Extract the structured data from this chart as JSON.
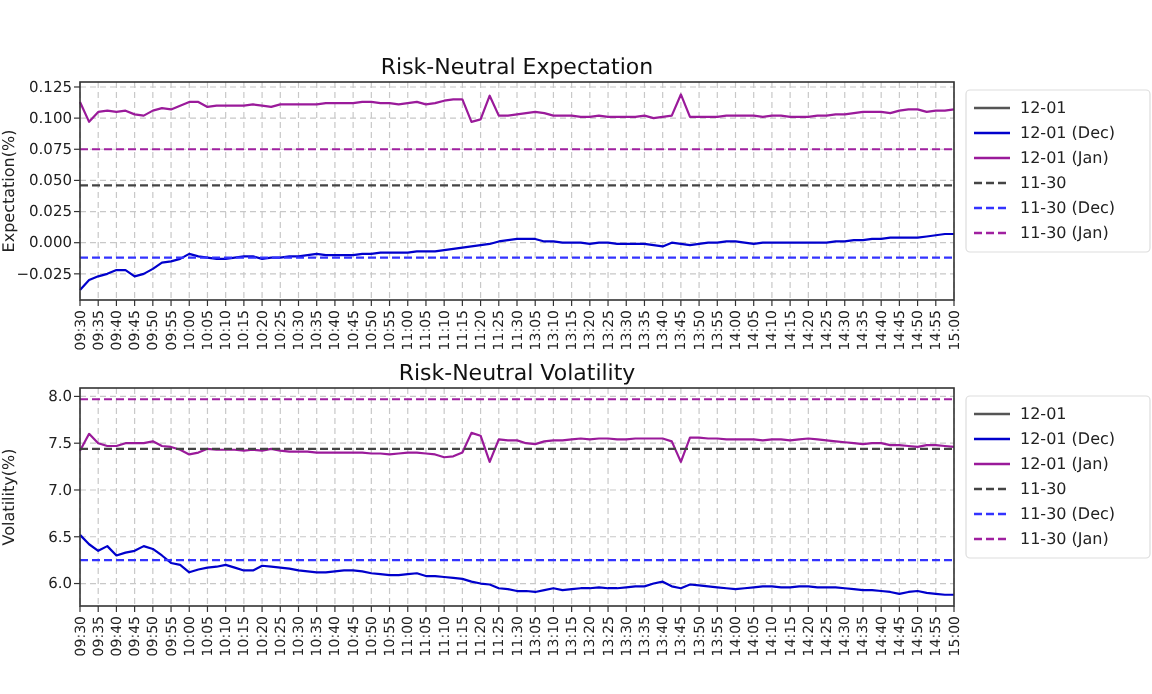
{
  "chart_data": [
    {
      "type": "line",
      "title": "Risk-Neutral Expectation",
      "ylabel": "Expectation(%)",
      "grid": true,
      "legend": "right",
      "line_style": "solid",
      "ylim": [
        -0.046,
        0.129
      ],
      "yticks": [
        {
          "value": -0.025,
          "label": "−0.025"
        },
        {
          "value": 0,
          "label": "0.000"
        },
        {
          "value": 0.025,
          "label": "0.025"
        },
        {
          "value": 0.05,
          "label": "0.050"
        },
        {
          "value": 0.075,
          "label": "0.075"
        },
        {
          "value": 0.1,
          "label": "0.100"
        },
        {
          "value": 0.125,
          "label": "0.125"
        }
      ],
      "categories": [
        "09:30",
        null,
        "09:35",
        null,
        "09:40",
        null,
        "09:45",
        null,
        "09:50",
        null,
        "09:55",
        null,
        "10:00",
        null,
        "10:05",
        null,
        "10:10",
        null,
        "10:15",
        null,
        "10:20",
        null,
        "10:25",
        null,
        "10:30",
        null,
        "10:35",
        null,
        "10:40",
        null,
        "10:45",
        null,
        "10:50",
        null,
        "10:55",
        null,
        "11:00",
        null,
        "11:05",
        null,
        "11:10",
        null,
        "11:15",
        null,
        "11:20",
        null,
        "11:25",
        null,
        "11:30",
        null,
        "13:05",
        null,
        "13:10",
        null,
        "13:15",
        null,
        "13:20",
        null,
        "13:25",
        null,
        "13:30",
        null,
        "13:35",
        null,
        "13:40",
        null,
        "13:45",
        null,
        "13:50",
        null,
        "13:55",
        null,
        "14:00",
        null,
        "14:05",
        null,
        "14:10",
        null,
        "14:15",
        null,
        "14:20",
        null,
        "14:25",
        null,
        "14:30",
        null,
        "14:35",
        null,
        "14:40",
        null,
        "14:45",
        null,
        "14:50",
        null,
        "14:55",
        null,
        "15:00"
      ],
      "series": [
        {
          "name": "12-01",
          "color": "#555555",
          "values": [
            null,
            null,
            null,
            null,
            null,
            null,
            null,
            null,
            null,
            null,
            null,
            null,
            null,
            null,
            null,
            null,
            null,
            null,
            null,
            null,
            null,
            null,
            null,
            null,
            null,
            null,
            null,
            null,
            null,
            null,
            null,
            null,
            null,
            null,
            null,
            null,
            null,
            null,
            null,
            null,
            null,
            null,
            null,
            null,
            null,
            null,
            null,
            null,
            null,
            null,
            null,
            null,
            null,
            null,
            null,
            null,
            null,
            null,
            null,
            null,
            null,
            null,
            null,
            null,
            null,
            null,
            null,
            null,
            null,
            null,
            null,
            null,
            null,
            null,
            null,
            null,
            null,
            null,
            null,
            null,
            null,
            null,
            null,
            null,
            null,
            null,
            null,
            null,
            null,
            null,
            null,
            null,
            null,
            null,
            null,
            null,
            null
          ]
        },
        {
          "name": "12-01 (Dec)",
          "color": "#0000cc",
          "values": [
            -0.038,
            -0.03,
            -0.027,
            -0.025,
            -0.022,
            -0.022,
            -0.027,
            -0.025,
            -0.021,
            -0.016,
            -0.015,
            -0.013,
            -0.009,
            -0.011,
            -0.012,
            -0.013,
            -0.013,
            -0.012,
            -0.011,
            -0.011,
            -0.013,
            -0.012,
            -0.012,
            -0.011,
            -0.011,
            -0.01,
            -0.009,
            -0.01,
            -0.01,
            -0.01,
            -0.01,
            -0.009,
            -0.009,
            -0.008,
            -0.008,
            -0.008,
            -0.008,
            -0.007,
            -0.007,
            -0.007,
            -0.006,
            -0.005,
            -0.004,
            -0.003,
            -0.002,
            -0.001,
            0.001,
            0.002,
            0.003,
            0.003,
            0.003,
            0.001,
            0.001,
            0.0,
            0.0,
            0.0,
            -0.001,
            0.0,
            0.0,
            -0.001,
            -0.001,
            -0.001,
            -0.001,
            -0.002,
            -0.003,
            0.0,
            -0.001,
            -0.002,
            -0.001,
            0.0,
            0.0,
            0.001,
            0.001,
            0.0,
            -0.001,
            0.0,
            0.0,
            0.0,
            0.0,
            0.0,
            0.0,
            0.0,
            0.0,
            0.001,
            0.001,
            0.002,
            0.002,
            0.003,
            0.003,
            0.004,
            0.004,
            0.004,
            0.004,
            0.005,
            0.006,
            0.007,
            0.007
          ]
        },
        {
          "name": "12-01 (Jan)",
          "color": "#9a1a9a",
          "values": [
            0.113,
            0.097,
            0.105,
            0.106,
            0.105,
            0.106,
            0.103,
            0.102,
            0.106,
            0.108,
            0.107,
            0.11,
            0.113,
            0.113,
            0.109,
            0.11,
            0.11,
            0.11,
            0.11,
            0.111,
            0.11,
            0.109,
            0.111,
            0.111,
            0.111,
            0.111,
            0.111,
            0.112,
            0.112,
            0.112,
            0.112,
            0.113,
            0.113,
            0.112,
            0.112,
            0.111,
            0.112,
            0.113,
            0.111,
            0.112,
            0.114,
            0.115,
            0.115,
            0.097,
            0.099,
            0.118,
            0.102,
            0.102,
            0.103,
            0.104,
            0.105,
            0.104,
            0.102,
            0.102,
            0.102,
            0.101,
            0.101,
            0.102,
            0.101,
            0.101,
            0.101,
            0.101,
            0.102,
            0.1,
            0.101,
            0.102,
            0.119,
            0.101,
            0.101,
            0.101,
            0.101,
            0.102,
            0.102,
            0.102,
            0.102,
            0.101,
            0.102,
            0.102,
            0.101,
            0.101,
            0.101,
            0.102,
            0.102,
            0.103,
            0.103,
            0.104,
            0.105,
            0.105,
            0.105,
            0.104,
            0.106,
            0.107,
            0.107,
            0.105,
            0.106,
            0.106,
            0.107
          ]
        },
        {
          "name": "11-30",
          "color": "#444444",
          "line_style": "dashed",
          "values": [
            0.046,
            0.046,
            0.046,
            0.046,
            0.046,
            0.046,
            0.046,
            0.046,
            0.046,
            0.046,
            0.046,
            0.046,
            0.046,
            0.046,
            0.046,
            0.046,
            0.046,
            0.046,
            0.046,
            0.046,
            0.046,
            0.046,
            0.046,
            0.046,
            0.046,
            0.046,
            0.046,
            0.046,
            0.046,
            0.046,
            0.046,
            0.046,
            0.046,
            0.046,
            0.046,
            0.046,
            0.046,
            0.046,
            0.046,
            0.046,
            0.046,
            0.046,
            0.046,
            0.046,
            0.046,
            0.046,
            0.046,
            0.046,
            0.046,
            0.046,
            0.046,
            0.046,
            0.046,
            0.046,
            0.046,
            0.046,
            0.046,
            0.046,
            0.046,
            0.046,
            0.046,
            0.046,
            0.046,
            0.046,
            0.046,
            0.046,
            0.046,
            0.046,
            0.046,
            0.046,
            0.046,
            0.046,
            0.046,
            0.046,
            0.046,
            0.046,
            0.046,
            0.046,
            0.046,
            0.046,
            0.046,
            0.046,
            0.046,
            0.046,
            0.046,
            0.046,
            0.046,
            0.046,
            0.046,
            0.046,
            0.046,
            0.046,
            0.046,
            0.046,
            0.046,
            0.046,
            0.046
          ]
        },
        {
          "name": "11-30 (Dec)",
          "color": "#3333ff",
          "line_style": "dashed",
          "values": [
            -0.012,
            -0.012,
            -0.012,
            -0.012,
            -0.012,
            -0.012,
            -0.012,
            -0.012,
            -0.012,
            -0.012,
            -0.012,
            -0.012,
            -0.012,
            -0.012,
            -0.012,
            -0.012,
            -0.012,
            -0.012,
            -0.012,
            -0.012,
            -0.012,
            -0.012,
            -0.012,
            -0.012,
            -0.012,
            -0.012,
            -0.012,
            -0.012,
            -0.012,
            -0.012,
            -0.012,
            -0.012,
            -0.012,
            -0.012,
            -0.012,
            -0.012,
            -0.012,
            -0.012,
            -0.012,
            -0.012,
            -0.012,
            -0.012,
            -0.012,
            -0.012,
            -0.012,
            -0.012,
            -0.012,
            -0.012,
            -0.012,
            -0.012,
            -0.012,
            -0.012,
            -0.012,
            -0.012,
            -0.012,
            -0.012,
            -0.012,
            -0.012,
            -0.012,
            -0.012,
            -0.012,
            -0.012,
            -0.012,
            -0.012,
            -0.012,
            -0.012,
            -0.012,
            -0.012,
            -0.012,
            -0.012,
            -0.012,
            -0.012,
            -0.012,
            -0.012,
            -0.012,
            -0.012,
            -0.012,
            -0.012,
            -0.012,
            -0.012,
            -0.012,
            -0.012,
            -0.012,
            -0.012,
            -0.012,
            -0.012,
            -0.012,
            -0.012,
            -0.012,
            -0.012,
            -0.012,
            -0.012,
            -0.012,
            -0.012,
            -0.012,
            -0.012,
            -0.012
          ]
        },
        {
          "name": "11-30 (Jan)",
          "color": "#a020a0",
          "line_style": "dashed",
          "values": [
            0.075,
            0.075,
            0.075,
            0.075,
            0.075,
            0.075,
            0.075,
            0.075,
            0.075,
            0.075,
            0.075,
            0.075,
            0.075,
            0.075,
            0.075,
            0.075,
            0.075,
            0.075,
            0.075,
            0.075,
            0.075,
            0.075,
            0.075,
            0.075,
            0.075,
            0.075,
            0.075,
            0.075,
            0.075,
            0.075,
            0.075,
            0.075,
            0.075,
            0.075,
            0.075,
            0.075,
            0.075,
            0.075,
            0.075,
            0.075,
            0.075,
            0.075,
            0.075,
            0.075,
            0.075,
            0.075,
            0.075,
            0.075,
            0.075,
            0.075,
            0.075,
            0.075,
            0.075,
            0.075,
            0.075,
            0.075,
            0.075,
            0.075,
            0.075,
            0.075,
            0.075,
            0.075,
            0.075,
            0.075,
            0.075,
            0.075,
            0.075,
            0.075,
            0.075,
            0.075,
            0.075,
            0.075,
            0.075,
            0.075,
            0.075,
            0.075,
            0.075,
            0.075,
            0.075,
            0.075,
            0.075,
            0.075,
            0.075,
            0.075,
            0.075,
            0.075,
            0.075,
            0.075,
            0.075,
            0.075,
            0.075,
            0.075,
            0.075,
            0.075,
            0.075,
            0.075,
            0.075
          ]
        }
      ]
    },
    {
      "type": "line",
      "title": "Risk-Neutral Volatility",
      "ylabel": "Volatility(%)",
      "grid": true,
      "legend": "right",
      "line_style": "solid",
      "ylim": [
        5.76,
        8.09
      ],
      "yticks": [
        {
          "value": 6,
          "label": "6.0"
        },
        {
          "value": 6.5,
          "label": "6.5"
        },
        {
          "value": 7,
          "label": "7.0"
        },
        {
          "value": 7.5,
          "label": "7.5"
        },
        {
          "value": 8,
          "label": "8.0"
        }
      ],
      "categories": [
        "09:30",
        null,
        "09:35",
        null,
        "09:40",
        null,
        "09:45",
        null,
        "09:50",
        null,
        "09:55",
        null,
        "10:00",
        null,
        "10:05",
        null,
        "10:10",
        null,
        "10:15",
        null,
        "10:20",
        null,
        "10:25",
        null,
        "10:30",
        null,
        "10:35",
        null,
        "10:40",
        null,
        "10:45",
        null,
        "10:50",
        null,
        "10:55",
        null,
        "11:00",
        null,
        "11:05",
        null,
        "11:10",
        null,
        "11:15",
        null,
        "11:20",
        null,
        "11:25",
        null,
        "11:30",
        null,
        "13:05",
        null,
        "13:10",
        null,
        "13:15",
        null,
        "13:20",
        null,
        "13:25",
        null,
        "13:30",
        null,
        "13:35",
        null,
        "13:40",
        null,
        "13:45",
        null,
        "13:50",
        null,
        "13:55",
        null,
        "14:00",
        null,
        "14:05",
        null,
        "14:10",
        null,
        "14:15",
        null,
        "14:20",
        null,
        "14:25",
        null,
        "14:30",
        null,
        "14:35",
        null,
        "14:40",
        null,
        "14:45",
        null,
        "14:50",
        null,
        "14:55",
        null,
        "15:00"
      ],
      "series": [
        {
          "name": "12-01",
          "color": "#555555",
          "values": [
            null,
            null,
            null,
            null,
            null,
            null,
            null,
            null,
            null,
            null,
            null,
            null,
            null,
            null,
            null,
            null,
            null,
            null,
            null,
            null,
            null,
            null,
            null,
            null,
            null,
            null,
            null,
            null,
            null,
            null,
            null,
            null,
            null,
            null,
            null,
            null,
            null,
            null,
            null,
            null,
            null,
            null,
            null,
            null,
            null,
            null,
            null,
            null,
            null,
            null,
            null,
            null,
            null,
            null,
            null,
            null,
            null,
            null,
            null,
            null,
            null,
            null,
            null,
            null,
            null,
            null,
            null,
            null,
            null,
            null,
            null,
            null,
            null,
            null,
            null,
            null,
            null,
            null,
            null,
            null,
            null,
            null,
            null,
            null,
            null,
            null,
            null,
            null,
            null,
            null,
            null,
            null,
            null,
            null,
            null,
            null,
            null
          ]
        },
        {
          "name": "12-01 (Dec)",
          "color": "#0000cc",
          "values": [
            6.52,
            6.42,
            6.35,
            6.4,
            6.3,
            6.33,
            6.35,
            6.4,
            6.37,
            6.3,
            6.22,
            6.2,
            6.12,
            6.15,
            6.17,
            6.18,
            6.2,
            6.17,
            6.14,
            6.14,
            6.19,
            6.18,
            6.17,
            6.16,
            6.14,
            6.13,
            6.12,
            6.12,
            6.13,
            6.14,
            6.14,
            6.13,
            6.11,
            6.1,
            6.09,
            6.09,
            6.1,
            6.11,
            6.08,
            6.08,
            6.07,
            6.06,
            6.05,
            6.02,
            6.0,
            5.99,
            5.95,
            5.94,
            5.92,
            5.92,
            5.91,
            5.93,
            5.95,
            5.93,
            5.94,
            5.95,
            5.95,
            5.96,
            5.95,
            5.95,
            5.96,
            5.97,
            5.97,
            6.0,
            6.02,
            5.97,
            5.95,
            5.99,
            5.98,
            5.97,
            5.96,
            5.95,
            5.94,
            5.95,
            5.96,
            5.97,
            5.97,
            5.96,
            5.96,
            5.97,
            5.97,
            5.96,
            5.96,
            5.96,
            5.95,
            5.94,
            5.93,
            5.93,
            5.92,
            5.91,
            5.89,
            5.91,
            5.92,
            5.9,
            5.89,
            5.88,
            5.88
          ]
        },
        {
          "name": "12-01 (Jan)",
          "color": "#9a1a9a",
          "values": [
            7.42,
            7.6,
            7.5,
            7.47,
            7.47,
            7.5,
            7.5,
            7.5,
            7.52,
            7.47,
            7.46,
            7.43,
            7.38,
            7.4,
            7.44,
            7.43,
            7.43,
            7.43,
            7.42,
            7.43,
            7.42,
            7.44,
            7.42,
            7.41,
            7.41,
            7.41,
            7.4,
            7.4,
            7.4,
            7.4,
            7.4,
            7.4,
            7.39,
            7.39,
            7.38,
            7.39,
            7.4,
            7.4,
            7.39,
            7.38,
            7.35,
            7.36,
            7.4,
            7.61,
            7.58,
            7.3,
            7.54,
            7.53,
            7.53,
            7.5,
            7.49,
            7.52,
            7.53,
            7.53,
            7.54,
            7.55,
            7.54,
            7.55,
            7.55,
            7.54,
            7.54,
            7.55,
            7.55,
            7.55,
            7.55,
            7.52,
            7.3,
            7.56,
            7.56,
            7.55,
            7.55,
            7.54,
            7.54,
            7.54,
            7.54,
            7.53,
            7.54,
            7.54,
            7.53,
            7.54,
            7.55,
            7.54,
            7.53,
            7.52,
            7.51,
            7.5,
            7.49,
            7.5,
            7.5,
            7.48,
            7.48,
            7.47,
            7.46,
            7.48,
            7.48,
            7.47,
            7.46
          ]
        },
        {
          "name": "11-30",
          "color": "#444444",
          "line_style": "dashed",
          "values": [
            7.44,
            7.44,
            7.44,
            7.44,
            7.44,
            7.44,
            7.44,
            7.44,
            7.44,
            7.44,
            7.44,
            7.44,
            7.44,
            7.44,
            7.44,
            7.44,
            7.44,
            7.44,
            7.44,
            7.44,
            7.44,
            7.44,
            7.44,
            7.44,
            7.44,
            7.44,
            7.44,
            7.44,
            7.44,
            7.44,
            7.44,
            7.44,
            7.44,
            7.44,
            7.44,
            7.44,
            7.44,
            7.44,
            7.44,
            7.44,
            7.44,
            7.44,
            7.44,
            7.44,
            7.44,
            7.44,
            7.44,
            7.44,
            7.44,
            7.44,
            7.44,
            7.44,
            7.44,
            7.44,
            7.44,
            7.44,
            7.44,
            7.44,
            7.44,
            7.44,
            7.44,
            7.44,
            7.44,
            7.44,
            7.44,
            7.44,
            7.44,
            7.44,
            7.44,
            7.44,
            7.44,
            7.44,
            7.44,
            7.44,
            7.44,
            7.44,
            7.44,
            7.44,
            7.44,
            7.44,
            7.44,
            7.44,
            7.44,
            7.44,
            7.44,
            7.44,
            7.44,
            7.44,
            7.44,
            7.44,
            7.44,
            7.44,
            7.44,
            7.44,
            7.44,
            7.44,
            7.44
          ]
        },
        {
          "name": "11-30 (Dec)",
          "color": "#3333ff",
          "line_style": "dashed",
          "values": [
            6.25,
            6.25,
            6.25,
            6.25,
            6.25,
            6.25,
            6.25,
            6.25,
            6.25,
            6.25,
            6.25,
            6.25,
            6.25,
            6.25,
            6.25,
            6.25,
            6.25,
            6.25,
            6.25,
            6.25,
            6.25,
            6.25,
            6.25,
            6.25,
            6.25,
            6.25,
            6.25,
            6.25,
            6.25,
            6.25,
            6.25,
            6.25,
            6.25,
            6.25,
            6.25,
            6.25,
            6.25,
            6.25,
            6.25,
            6.25,
            6.25,
            6.25,
            6.25,
            6.25,
            6.25,
            6.25,
            6.25,
            6.25,
            6.25,
            6.25,
            6.25,
            6.25,
            6.25,
            6.25,
            6.25,
            6.25,
            6.25,
            6.25,
            6.25,
            6.25,
            6.25,
            6.25,
            6.25,
            6.25,
            6.25,
            6.25,
            6.25,
            6.25,
            6.25,
            6.25,
            6.25,
            6.25,
            6.25,
            6.25,
            6.25,
            6.25,
            6.25,
            6.25,
            6.25,
            6.25,
            6.25,
            6.25,
            6.25,
            6.25,
            6.25,
            6.25,
            6.25,
            6.25,
            6.25,
            6.25,
            6.25,
            6.25,
            6.25,
            6.25,
            6.25,
            6.25,
            6.25
          ]
        },
        {
          "name": "11-30 (Jan)",
          "color": "#a020a0",
          "line_style": "dashed",
          "values": [
            7.97,
            7.97,
            7.97,
            7.97,
            7.97,
            7.97,
            7.97,
            7.97,
            7.97,
            7.97,
            7.97,
            7.97,
            7.97,
            7.97,
            7.97,
            7.97,
            7.97,
            7.97,
            7.97,
            7.97,
            7.97,
            7.97,
            7.97,
            7.97,
            7.97,
            7.97,
            7.97,
            7.97,
            7.97,
            7.97,
            7.97,
            7.97,
            7.97,
            7.97,
            7.97,
            7.97,
            7.97,
            7.97,
            7.97,
            7.97,
            7.97,
            7.97,
            7.97,
            7.97,
            7.97,
            7.97,
            7.97,
            7.97,
            7.97,
            7.97,
            7.97,
            7.97,
            7.97,
            7.97,
            7.97,
            7.97,
            7.97,
            7.97,
            7.97,
            7.97,
            7.97,
            7.97,
            7.97,
            7.97,
            7.97,
            7.97,
            7.97,
            7.97,
            7.97,
            7.97,
            7.97,
            7.97,
            7.97,
            7.97,
            7.97,
            7.97,
            7.97,
            7.97,
            7.97,
            7.97,
            7.97,
            7.97,
            7.97,
            7.97,
            7.97,
            7.97,
            7.97,
            7.97,
            7.97,
            7.97,
            7.97,
            7.97,
            7.97,
            7.97,
            7.97,
            7.97,
            7.97
          ]
        }
      ]
    }
  ]
}
